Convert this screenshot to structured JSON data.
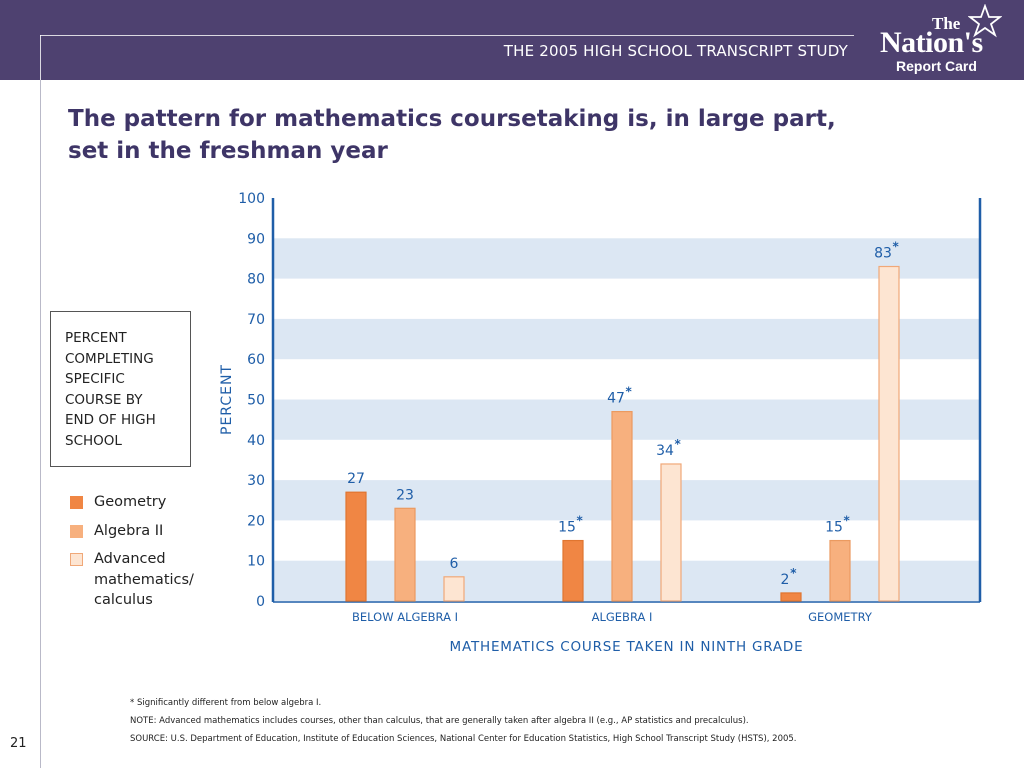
{
  "header": {
    "subtitle": "THE 2005 HIGH SCHOOL TRANSCRIPT STUDY",
    "logo_line1": "The",
    "logo_line2": "Nation's",
    "logo_line3": "Report Card",
    "background_color": "#4e4170"
  },
  "title": {
    "line1": "The pattern for mathematics coursetaking is, in large part,",
    "line2": "set in the freshman year"
  },
  "box_label": [
    "PERCENT",
    "COMPLETING",
    "SPECIFIC",
    "COURSE BY",
    "END OF HIGH",
    "SCHOOL"
  ],
  "legend": [
    {
      "label": "Geometry",
      "color": "#f08644"
    },
    {
      "label": "Algebra II",
      "color": "#f7b07e"
    },
    {
      "label_lines": [
        "Advanced",
        "mathematics/",
        "calculus"
      ],
      "color": "#fde5d2"
    }
  ],
  "chart_data": {
    "type": "bar",
    "title": "",
    "xlabel": "MATHEMATICS COURSE TAKEN IN NINTH GRADE",
    "ylabel": "PERCENT",
    "ylim": [
      0,
      100
    ],
    "yticks": [
      0,
      10,
      20,
      30,
      40,
      50,
      60,
      70,
      80,
      90,
      100
    ],
    "categories": [
      "BELOW ALGEBRA I",
      "ALGEBRA I",
      "GEOMETRY"
    ],
    "series": [
      {
        "name": "Geometry",
        "values": [
          27,
          15,
          2
        ],
        "labels": [
          "27",
          "15",
          "2"
        ],
        "significant": [
          false,
          true,
          true
        ],
        "color": "#f08644",
        "stroke": "#e07530"
      },
      {
        "name": "Algebra II",
        "values": [
          23,
          47,
          15
        ],
        "labels": [
          "23",
          "47",
          "15"
        ],
        "significant": [
          false,
          true,
          true
        ],
        "color": "#f7b07e",
        "stroke": "#eb9a60"
      },
      {
        "name": "Advanced mathematics/calculus",
        "values": [
          6,
          34,
          83
        ],
        "labels": [
          "6",
          "34",
          "83"
        ],
        "significant": [
          false,
          true,
          true
        ],
        "color": "#fde5d2",
        "stroke": "#f0a878"
      }
    ],
    "significance_marker": "*",
    "band_color": "#dce7f3",
    "axis_color": "#1f5ea8",
    "label_color": "#1f5ea8",
    "grid": "alternating-bands"
  },
  "footnotes": {
    "significance": "* Significantly different from below algebra I.",
    "note": "NOTE: Advanced mathematics includes courses, other than calculus, that are generally taken after algebra II (e.g., AP statistics and precalculus).",
    "source": "SOURCE: U.S. Department of Education, Institute of Education Sciences, National Center for Education Statistics, High School Transcript Study (HSTS), 2005."
  },
  "page_number": "21"
}
